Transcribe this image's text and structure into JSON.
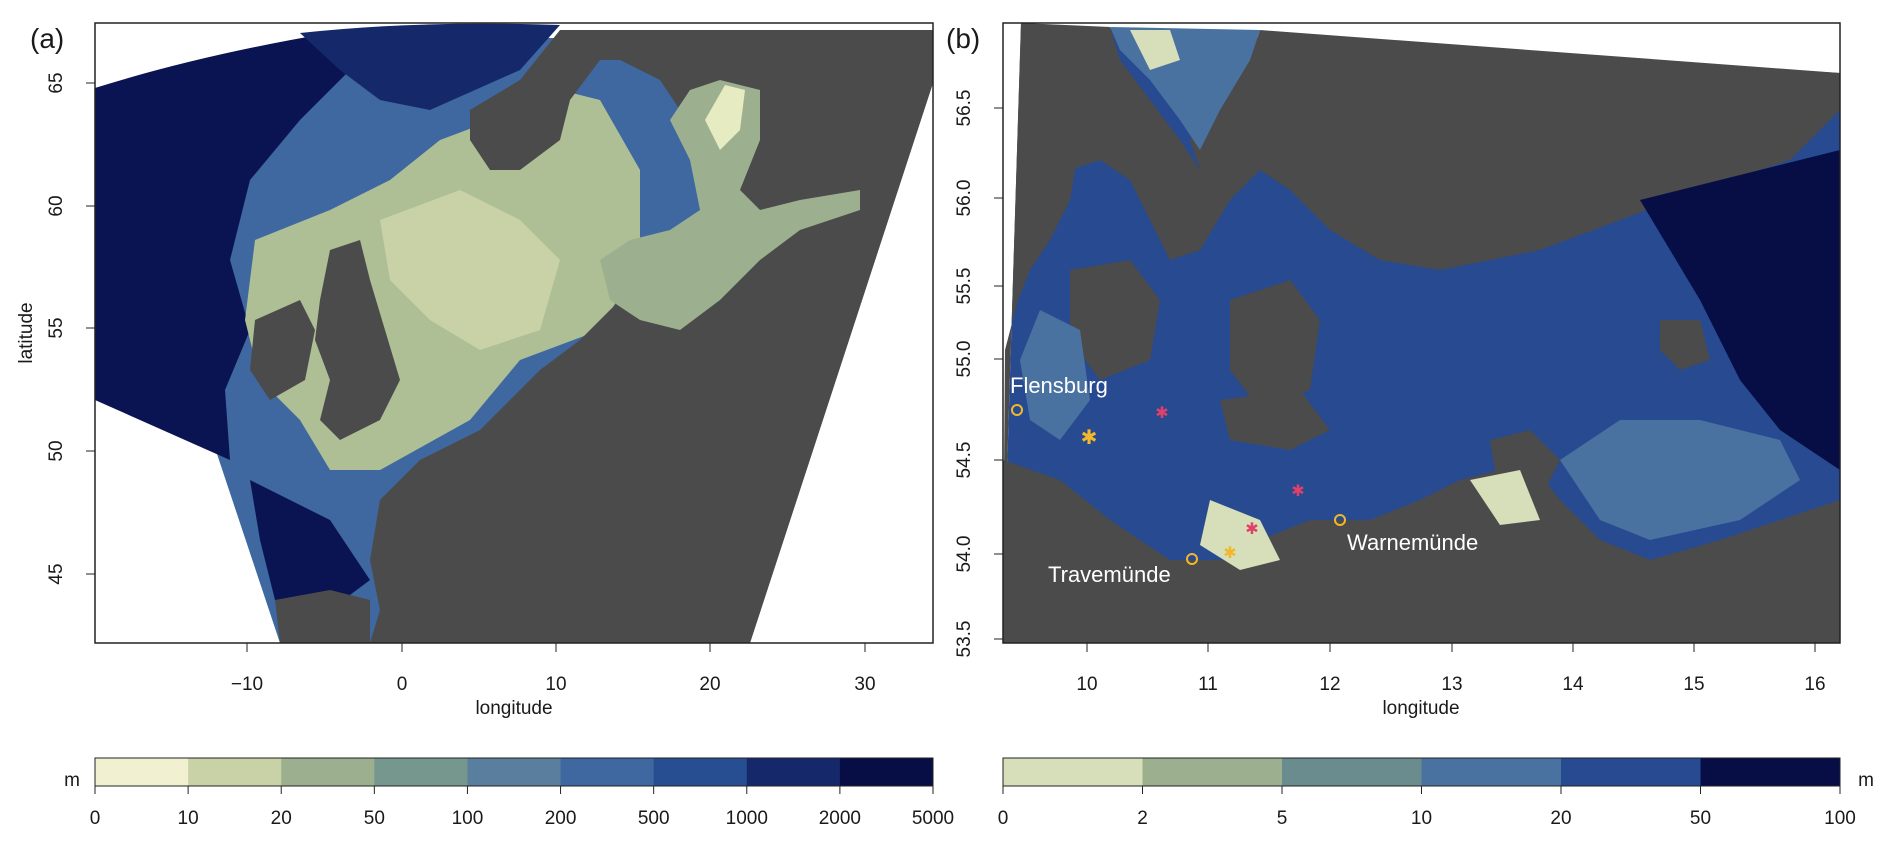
{
  "panel_a": {
    "letter": "(a)",
    "xlabel": "longitude",
    "ylabel": "latitude",
    "x_ticks": [
      "−10",
      "0",
      "10",
      "20",
      "30"
    ],
    "y_ticks": [
      "45",
      "50",
      "55",
      "60",
      "65"
    ]
  },
  "panel_b": {
    "letter": "(b)",
    "xlabel": "longitude",
    "x_ticks": [
      "10",
      "11",
      "12",
      "13",
      "14",
      "15",
      "16"
    ],
    "y_ticks": [
      "53.5",
      "54.0",
      "54.5",
      "55.0",
      "55.5",
      "56.0",
      "56.5"
    ],
    "places": [
      "Flensburg",
      "Travemünde",
      "Warnemünde"
    ]
  },
  "legend_a": {
    "unit": "m",
    "breaks": [
      "0",
      "10",
      "20",
      "50",
      "100",
      "200",
      "500",
      "1000",
      "2000",
      "5000"
    ],
    "colors": [
      "#f1f1d2",
      "#c9d2a7",
      "#9cb08f",
      "#76978e",
      "#5a7f9e",
      "#3f67a0",
      "#284e92",
      "#15296a",
      "#070d45"
    ]
  },
  "legend_b": {
    "unit": "m",
    "breaks": [
      "0",
      "2",
      "5",
      "10",
      "20",
      "50",
      "100"
    ],
    "colors": [
      "#d6dfb9",
      "#9cb08f",
      "#6b8c8f",
      "#4a72a1",
      "#274a90",
      "#070d45"
    ]
  },
  "colors": {
    "land": "#4b4b4b",
    "shelf": "#aebf96",
    "coast_light": "#e7ebc2",
    "mid": "#6f8fa6",
    "deep": "#2a4f8f",
    "abyss": "#0b1452",
    "marker_red": "#e0406a",
    "marker_yellow": "#f0b82a"
  }
}
